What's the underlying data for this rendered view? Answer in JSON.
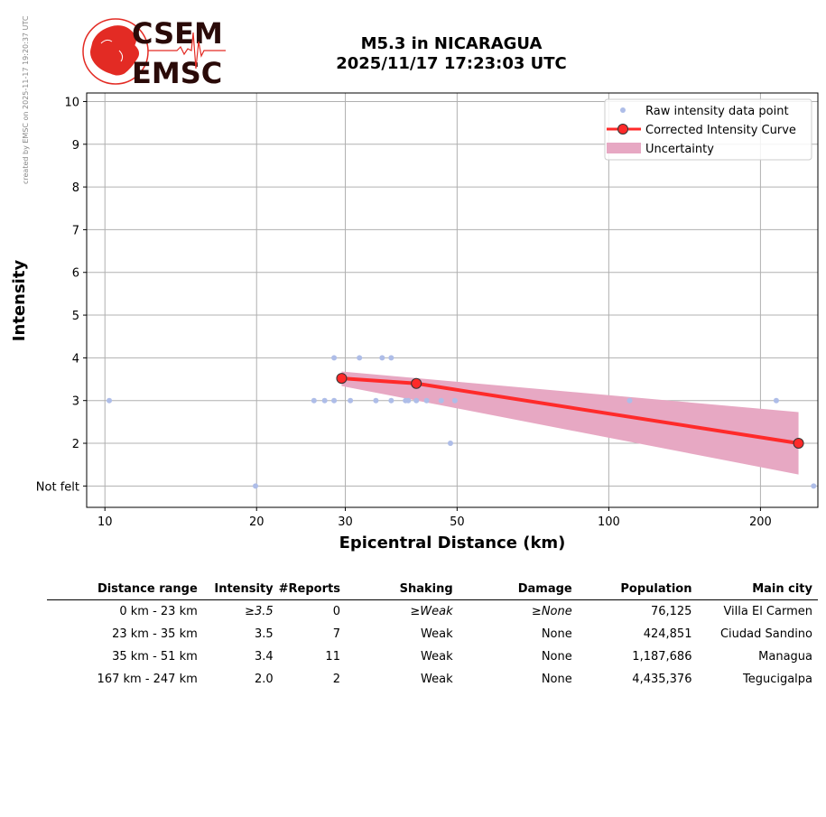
{
  "watermark": "created by EMSC on 2025-11-17 19:20:37 UTC",
  "logo": {
    "line1": "CSEM",
    "line2": "EMSC"
  },
  "title_line1": "M5.3 in NICARAGUA",
  "title_line2": "2025/11/17 17:23:03 UTC",
  "colors": {
    "raw": "#aebde8",
    "curve": "#ff2a2a",
    "uncertainty": "#e7a8c3",
    "logo_red": "#e32b24",
    "logo_dark": "#2a0a08"
  },
  "chart_data": {
    "type": "scatter",
    "xscale": "log",
    "xlim": [
      9.2,
      260
    ],
    "ylim": [
      0.5,
      10.2
    ],
    "xlabel": "Epicentral Distance (km)",
    "ylabel": "Intensity",
    "x_ticks": [
      10,
      20,
      30,
      50,
      100,
      200
    ],
    "x_tick_labels": [
      "10",
      "20",
      "30",
      "50",
      "100",
      "200"
    ],
    "y_ticks": [
      1,
      2,
      3,
      4,
      5,
      6,
      7,
      8,
      9,
      10
    ],
    "y_tick_labels": [
      "Not felt",
      "2",
      "3",
      "4",
      "5",
      "6",
      "7",
      "8",
      "9",
      "10"
    ],
    "grid": true,
    "legend_position": "top-right",
    "legend": [
      "Raw intensity data point",
      "Corrected Intensity Curve",
      "Uncertainty"
    ],
    "raw_points": [
      [
        10.2,
        3
      ],
      [
        19.9,
        1
      ],
      [
        26.0,
        3
      ],
      [
        27.3,
        3
      ],
      [
        28.5,
        3
      ],
      [
        30.7,
        3
      ],
      [
        34.5,
        3
      ],
      [
        37.0,
        3
      ],
      [
        39.5,
        3
      ],
      [
        40.0,
        3
      ],
      [
        41.5,
        3
      ],
      [
        43.5,
        3
      ],
      [
        46.5,
        3
      ],
      [
        49.5,
        3
      ],
      [
        28.5,
        4
      ],
      [
        32.0,
        4
      ],
      [
        35.5,
        4
      ],
      [
        37.0,
        4
      ],
      [
        48.5,
        2
      ],
      [
        110,
        3
      ],
      [
        215,
        3
      ],
      [
        255,
        1
      ]
    ],
    "curve_points": [
      [
        29.5,
        3.52
      ],
      [
        41.5,
        3.4
      ],
      [
        238,
        2.0
      ]
    ],
    "uncertainty_band": {
      "x": [
        29.5,
        238
      ],
      "upper": [
        3.68,
        2.73
      ],
      "lower": [
        3.34,
        1.27
      ]
    }
  },
  "table": {
    "headers": [
      "Distance range",
      "Intensity",
      "#Reports",
      "Shaking",
      "Damage",
      "Population",
      "Main city"
    ],
    "rows": [
      [
        "0 km -   23 km",
        "≥3.5",
        "0",
        "≥Weak",
        "≥None",
        "76,125",
        "Villa El Carmen"
      ],
      [
        "23 km -   35 km",
        "3.5",
        "7",
        "Weak",
        "None",
        "424,851",
        "Ciudad Sandino"
      ],
      [
        "35 km -   51 km",
        "3.4",
        "11",
        "Weak",
        "None",
        "1,187,686",
        "Managua"
      ],
      [
        "167 km -  247 km",
        "2.0",
        "2",
        "Weak",
        "None",
        "4,435,376",
        "Tegucigalpa"
      ]
    ]
  }
}
